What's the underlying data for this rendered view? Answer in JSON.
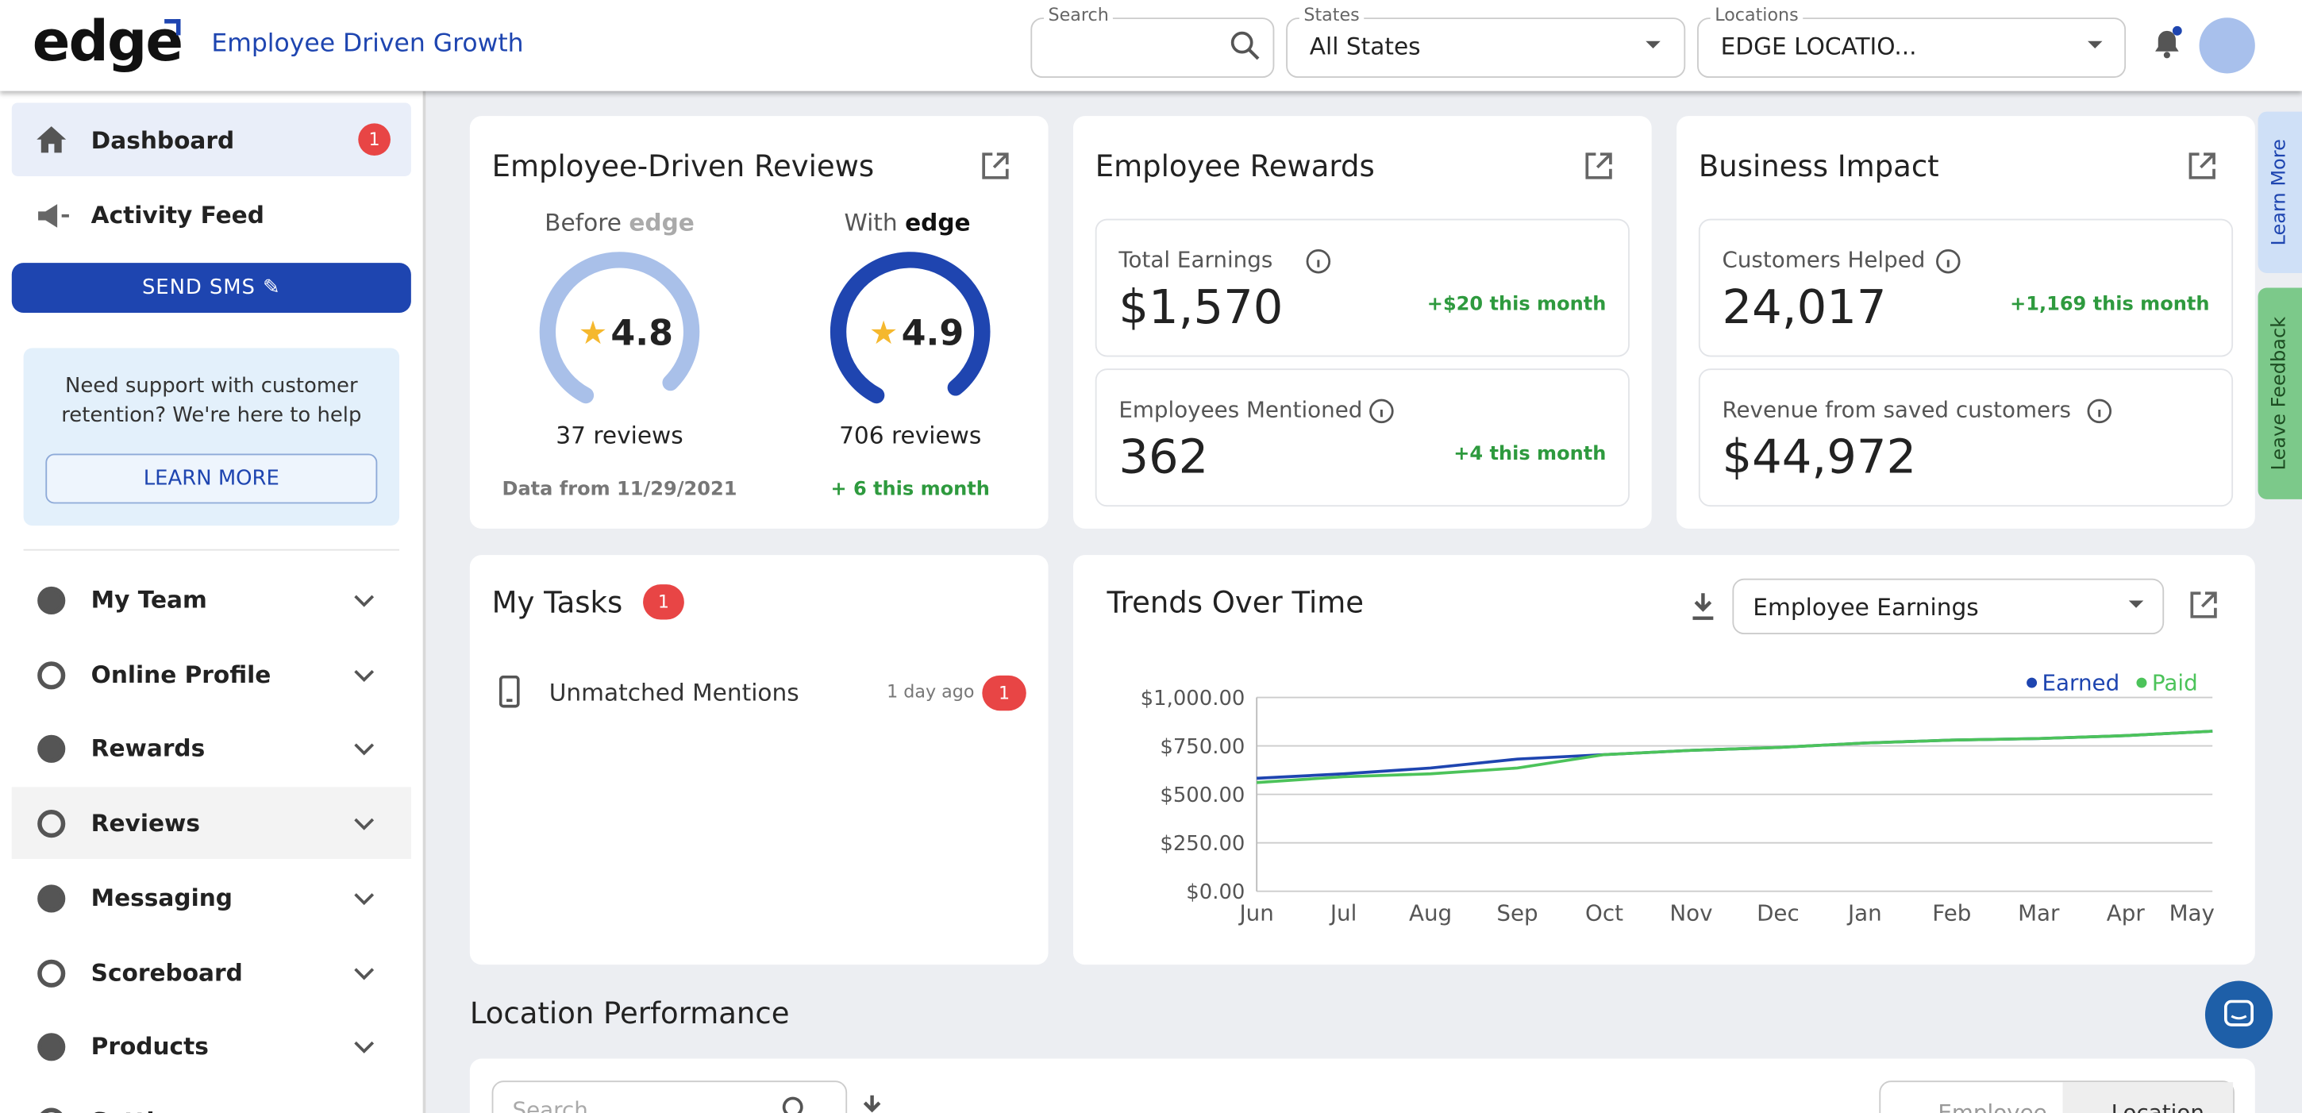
{
  "header": {
    "logo": "edge",
    "tagline": "Employee Driven Growth",
    "search_label": "Search",
    "states_label": "States",
    "states_value": "All States",
    "locations_label": "Locations",
    "locations_value": "EDGE LOCATIO..."
  },
  "sidebar": {
    "dashboard": "Dashboard",
    "dashboard_badge": 1,
    "activity": "Activity Feed",
    "send_sms": "SEND SMS",
    "support_text": "Need support with customer retention? We're here to help",
    "learn_more": "LEARN MORE",
    "nav": [
      "My Team",
      "Online Profile",
      "Rewards",
      "Reviews",
      "Messaging",
      "Scoreboard",
      "Products",
      "Settings"
    ]
  },
  "reviews_card": {
    "title": "Employee-Driven Reviews",
    "before_label": "Before",
    "before_rating": 4.8,
    "before_reviews": "37 reviews",
    "before_note": "Data from 11/29/2021",
    "with_label": "With",
    "with_rating": 4.9,
    "with_reviews": "706 reviews",
    "with_note": "+ 6 this month"
  },
  "rewards_card": {
    "title": "Employee Rewards",
    "stats": [
      {
        "label": "Total Earnings",
        "value": "$1,570",
        "change": "+$20 this month"
      },
      {
        "label": "Employees Mentioned",
        "value": "362",
        "change": "+4 this month"
      }
    ]
  },
  "impact_card": {
    "title": "Business Impact",
    "stats": [
      {
        "label": "Customers Helped",
        "value": "24,017",
        "change": "+1,169 this month"
      },
      {
        "label": "Revenue from saved customers",
        "value": "$44,972"
      }
    ]
  },
  "tasks_card": {
    "title": "My Tasks",
    "badge": 1,
    "items": [
      {
        "label": "Unmatched Mentions",
        "time": "1 day ago",
        "badge": 1
      }
    ]
  },
  "chart_data": {
    "type": "line",
    "title": "Trends Over Time",
    "dropdown": "Employee Earnings",
    "categories": [
      "Jun",
      "Jul",
      "Aug",
      "Sep",
      "Oct",
      "Nov",
      "Dec",
      "Jan",
      "Feb",
      "Mar",
      "Apr",
      "May"
    ],
    "series": [
      {
        "name": "Earned",
        "color": "#1e45b0",
        "values": [
          583,
          606,
          636,
          682,
          705,
          727,
          742,
          765,
          780,
          788,
          803,
          826
        ]
      },
      {
        "name": "Paid",
        "color": "#4cc35a",
        "values": [
          561,
          591,
          606,
          636,
          705,
          727,
          742,
          765,
          780,
          788,
          803,
          826
        ]
      }
    ],
    "ylim": [
      0,
      1000
    ],
    "yticks": [
      {
        "value": 0,
        "label": "$0.00"
      },
      {
        "value": 250,
        "label": "$250.00"
      },
      {
        "value": 500,
        "label": "$500.00"
      },
      {
        "value": 750,
        "label": "$750.00"
      },
      {
        "value": 1000,
        "label": "$1,000.00"
      }
    ],
    "grid": true,
    "legend": "top-right"
  },
  "location_performance": {
    "title": "Location Performance",
    "search_placeholder": "Search",
    "toggle": [
      "Employee",
      "Location"
    ]
  },
  "side_tabs": [
    "Learn More",
    "Leave Feedback"
  ]
}
